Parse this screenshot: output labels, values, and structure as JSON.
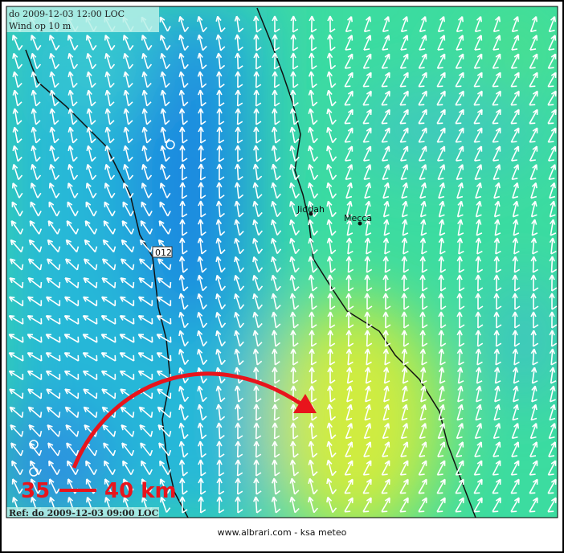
{
  "header": {
    "valid_time": "do 2009-12-03 12:00 LOC",
    "field": "Wind op 10 m"
  },
  "places": [
    {
      "label": "Jiddah"
    },
    {
      "label": "Mecca"
    },
    {
      "label": "012"
    }
  ],
  "scale": {
    "start": "35",
    "end": "40 km"
  },
  "reference": "Ref: do 2009-12-03 09:00 LOC",
  "footer": "www.albrari.com - ksa meteo"
}
